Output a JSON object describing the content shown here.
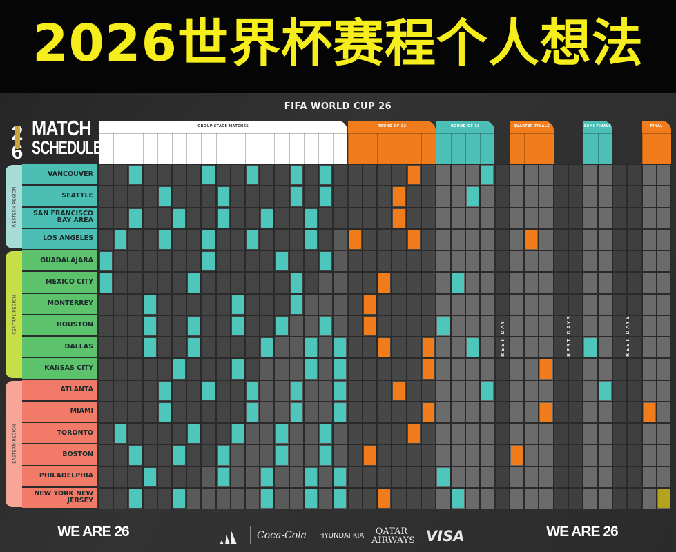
{
  "title": "2026世界杯赛程个人想法",
  "board": {
    "wc_title": "FIFA WORLD CUP 26",
    "schedule_title_line1": "MATCH",
    "schedule_title_line2": "SCHEDULE",
    "logo_text": "FIFA"
  },
  "stages": [
    {
      "label": "GROUP STAGE MATCHES",
      "color": "#ffffff"
    },
    {
      "label": "ROUND OF 32",
      "color": "#f07c1c"
    },
    {
      "label": "ROUND OF 16",
      "color": "#4cbfb6"
    },
    {
      "label": "QUARTER-FINALS",
      "color": "#f07c1c"
    },
    {
      "label": "SEMI-FINALS",
      "color": "#4cbfb6"
    },
    {
      "label": "FINAL",
      "color": "#f07c1c"
    }
  ],
  "rest_days": [
    "REST DAY",
    "REST DAYS",
    "REST DAYS"
  ],
  "regions": [
    {
      "label": "WESTERN REGION",
      "color": "#4bbfb4",
      "tab": "#a7ddd6"
    },
    {
      "label": "CENTRAL REGION",
      "color": "#5cc36c",
      "tab": "#c6de47"
    },
    {
      "label": "EASTERN REGION",
      "color": "#f27a68",
      "tab": "#f6a597"
    }
  ],
  "colors": {
    "group": "#4fc6bc",
    "knockout_orange": "#f07c1c",
    "knockout_teal": "#4fc6bc",
    "final": "#b5a21e"
  },
  "cities": [
    {
      "name": "VANCOUVER",
      "region": 0,
      "group": [
        2,
        7,
        10,
        13,
        15
      ],
      "ko": [
        [
          4,
          "o"
        ],
        [
          9,
          "t"
        ]
      ]
    },
    {
      "name": "SEATTLE",
      "region": 0,
      "group": [
        4,
        8,
        13,
        15
      ],
      "ko": [
        [
          3,
          "o"
        ],
        [
          8,
          "t"
        ]
      ]
    },
    {
      "name": "SAN FRANCISCO BAY AREA",
      "region": 0,
      "group": [
        2,
        5,
        8,
        11,
        14
      ],
      "ko": [
        [
          3,
          "o"
        ]
      ]
    },
    {
      "name": "LOS ANGELES",
      "region": 0,
      "group": [
        1,
        4,
        7,
        10,
        14
      ],
      "ko": [
        [
          0,
          "o"
        ],
        [
          4,
          "o"
        ],
        [
          12,
          "o"
        ]
      ]
    },
    {
      "name": "GUADALAJARA",
      "region": 1,
      "group": [
        0,
        7,
        12,
        15
      ],
      "ko": []
    },
    {
      "name": "MEXICO CITY",
      "region": 1,
      "group": [
        0,
        6,
        13
      ],
      "ko": [
        [
          2,
          "o"
        ],
        [
          7,
          "t"
        ]
      ]
    },
    {
      "name": "MONTERREY",
      "region": 1,
      "group": [
        3,
        9,
        13
      ],
      "ko": [
        [
          1,
          "o"
        ]
      ]
    },
    {
      "name": "HOUSTON",
      "region": 1,
      "group": [
        3,
        6,
        9,
        12,
        15
      ],
      "ko": [
        [
          1,
          "o"
        ],
        [
          6,
          "t"
        ]
      ]
    },
    {
      "name": "DALLAS",
      "region": 1,
      "group": [
        3,
        6,
        11,
        14,
        16
      ],
      "ko": [
        [
          2,
          "o"
        ],
        [
          5,
          "o"
        ],
        [
          8,
          "t"
        ],
        [
          16,
          "t"
        ]
      ]
    },
    {
      "name": "KANSAS CITY",
      "region": 1,
      "group": [
        5,
        9,
        14,
        16
      ],
      "ko": [
        [
          5,
          "o"
        ],
        [
          13,
          "o"
        ]
      ]
    },
    {
      "name": "ATLANTA",
      "region": 2,
      "group": [
        4,
        7,
        10,
        13,
        16
      ],
      "ko": [
        [
          3,
          "o"
        ],
        [
          9,
          "t"
        ],
        [
          17,
          "t"
        ]
      ]
    },
    {
      "name": "MIAMI",
      "region": 2,
      "group": [
        4,
        10,
        13,
        16
      ],
      "ko": [
        [
          5,
          "o"
        ],
        [
          13,
          "o"
        ],
        [
          20,
          "o"
        ]
      ]
    },
    {
      "name": "TORONTO",
      "region": 2,
      "group": [
        1,
        6,
        9,
        12,
        15
      ],
      "ko": [
        [
          4,
          "o"
        ]
      ]
    },
    {
      "name": "BOSTON",
      "region": 2,
      "group": [
        2,
        5,
        8,
        12,
        15
      ],
      "ko": [
        [
          1,
          "o"
        ],
        [
          11,
          "o"
        ]
      ]
    },
    {
      "name": "PHILADELPHIA",
      "region": 2,
      "group": [
        3,
        8,
        11,
        14,
        16
      ],
      "ko": [
        [
          6,
          "t"
        ]
      ]
    },
    {
      "name": "NEW YORK NEW JERSEY",
      "region": 2,
      "group": [
        2,
        5,
        11,
        14,
        16
      ],
      "ko": [
        [
          2,
          "o"
        ],
        [
          7,
          "t"
        ],
        [
          21,
          "f"
        ]
      ]
    }
  ],
  "footer": {
    "brand_left": "WE ARE 26",
    "brand_right": "WE ARE 26",
    "sponsors": [
      "adidas",
      "Coca-Cola",
      "HYUNDAI  KIA",
      "QATAR AIRWAYS",
      "VISA"
    ]
  }
}
